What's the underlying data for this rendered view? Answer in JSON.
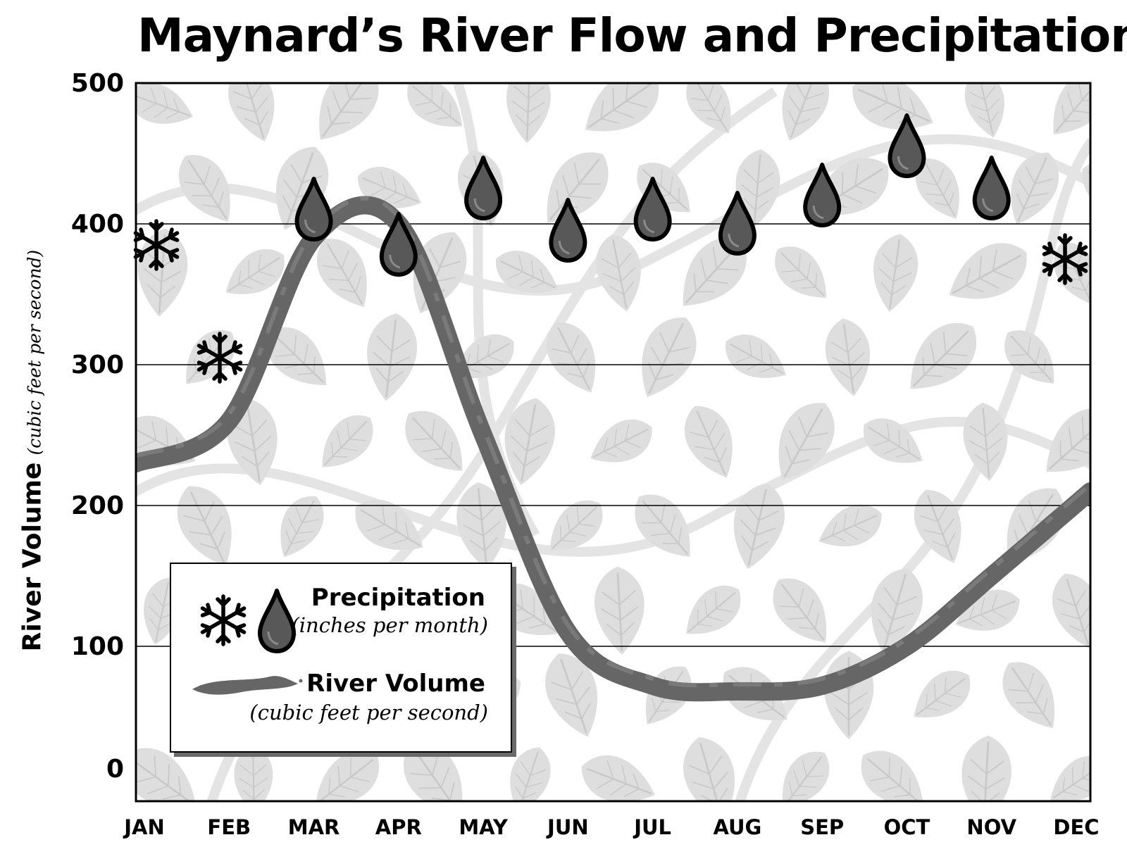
{
  "chart_data": {
    "type": "line",
    "title": "Maynard’s River Flow and Precipitation",
    "ylabel": "River Volume",
    "ylabel_unit": "(cubic feet per second)",
    "xlabel": "",
    "ylim": [
      0,
      500
    ],
    "yticks": [
      0,
      100,
      200,
      300,
      400,
      500
    ],
    "grid": "horizontal",
    "categories": [
      "JAN",
      "FEB",
      "MAR",
      "APR",
      "MAY",
      "JUN",
      "JUL",
      "AUG",
      "SEP",
      "OCT",
      "NOV",
      "DEC"
    ],
    "series": [
      {
        "name": "River Volume",
        "unit": "(cubic feet per second)",
        "values": [
          230,
          260,
          390,
          400,
          250,
          110,
          72,
          68,
          72,
          100,
          150,
          210
        ]
      },
      {
        "name": "Precipitation",
        "unit": "(inches per month)",
        "marker_values": [
          385,
          305,
          410,
          385,
          425,
          395,
          410,
          400,
          420,
          455,
          425,
          375
        ],
        "markers": [
          "snowflake-icon",
          "snowflake-icon",
          "raindrop-icon",
          "raindrop-icon",
          "raindrop-icon",
          "raindrop-icon",
          "raindrop-icon",
          "raindrop-icon",
          "raindrop-icon",
          "raindrop-icon",
          "raindrop-icon",
          "snowflake-icon"
        ]
      }
    ],
    "legend": {
      "placement": "bottom-left",
      "entries": [
        {
          "label": "Precipitation",
          "unit": "(inches per month)"
        },
        {
          "label": "River Volume",
          "unit": "(cubic feet per second)"
        }
      ]
    },
    "colors": {
      "river": "#666666",
      "drop_fill": "#555555",
      "leaf_pattern": "#dcdcdc",
      "gridline": "#000000"
    }
  }
}
